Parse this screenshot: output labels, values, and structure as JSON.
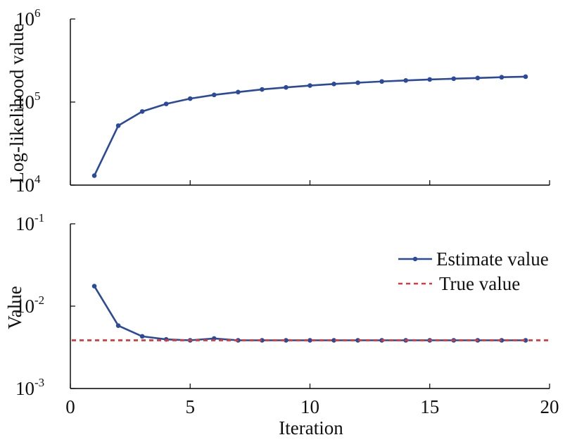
{
  "chart_data": [
    {
      "type": "line",
      "ylabel": "Log-likelihood value",
      "xlabel": "",
      "yscale": "log",
      "ylim": [
        10000,
        1000000
      ],
      "xlim": [
        0,
        20
      ],
      "y_ticks": [
        {
          "base": "10",
          "exp": "4"
        },
        {
          "base": "10",
          "exp": "5"
        },
        {
          "base": "10",
          "exp": "6"
        }
      ],
      "x_ticks": [
        0,
        5,
        10,
        15,
        20
      ],
      "series": [
        {
          "color": "#2b4a9b",
          "x": [
            1,
            2,
            3,
            4,
            5,
            6,
            7,
            8,
            9,
            10,
            11,
            12,
            13,
            14,
            15,
            16,
            17,
            18,
            19
          ],
          "values": [
            13000,
            52000,
            77000,
            95000,
            110000,
            122000,
            132000,
            142000,
            150000,
            158000,
            165000,
            171000,
            177000,
            182000,
            187000,
            191000,
            195000,
            199000,
            202000
          ]
        }
      ]
    },
    {
      "type": "line",
      "ylabel": "Value",
      "xlabel": "Iteration",
      "yscale": "log",
      "ylim": [
        0.001,
        0.1
      ],
      "xlim": [
        0,
        20
      ],
      "x_ticks": [
        0,
        5,
        10,
        15,
        20
      ],
      "x_tick_labels": [
        "0",
        "5",
        "10",
        "15",
        "20"
      ],
      "y_ticks": [
        {
          "base": "10",
          "exp": "-3"
        },
        {
          "base": "10",
          "exp": "-2"
        },
        {
          "base": "10",
          "exp": "-1"
        }
      ],
      "legend": "top-right",
      "series": [
        {
          "name": "Estimate value",
          "color": "#2b4a9b",
          "x": [
            1,
            2,
            3,
            4,
            5,
            6,
            7,
            8,
            9,
            10,
            11,
            12,
            13,
            14,
            15,
            16,
            17,
            18,
            19
          ],
          "values": [
            0.0175,
            0.0058,
            0.0043,
            0.00395,
            0.00385,
            0.00405,
            0.00385,
            0.00385,
            0.00385,
            0.00385,
            0.00385,
            0.00385,
            0.00385,
            0.00385,
            0.00385,
            0.00385,
            0.00385,
            0.00385,
            0.00385
          ]
        },
        {
          "name": "True value",
          "color": "#d93a3a",
          "style": "dashed",
          "constant": 0.00385
        }
      ]
    }
  ]
}
